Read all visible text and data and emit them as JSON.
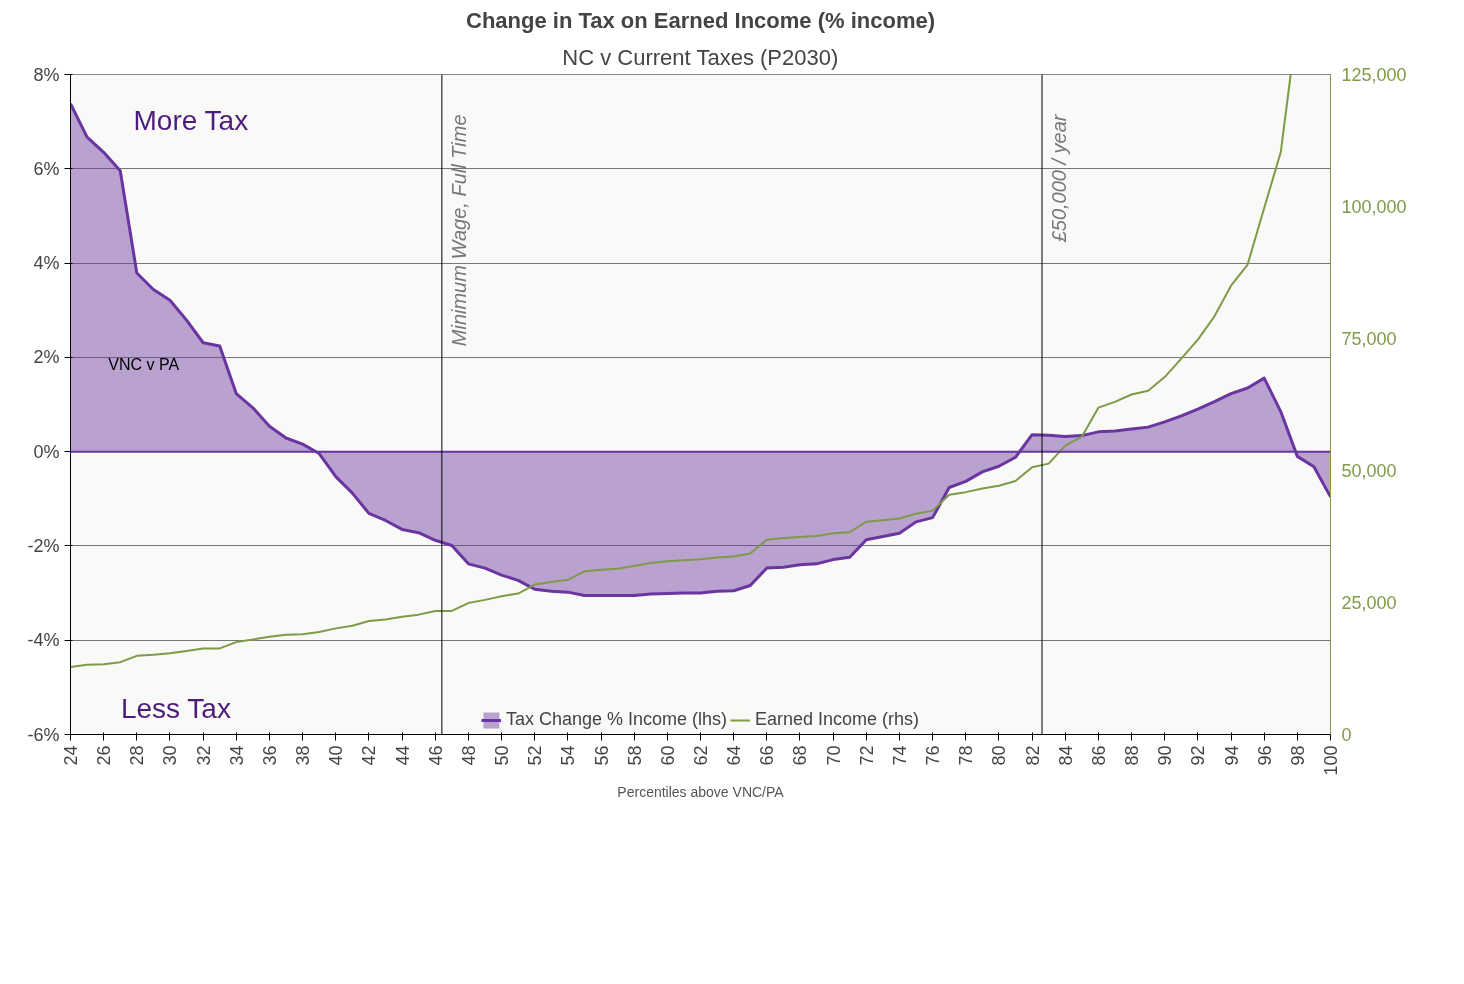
{
  "chart_data": {
    "type": "area",
    "title": "Change in Tax on Earned Income (% income)",
    "subtitle": "NC v Current Taxes (P2030)",
    "xlabel": "Percentiles above VNC/PA",
    "x": [
      24,
      25,
      26,
      27,
      28,
      29,
      30,
      31,
      32,
      33,
      34,
      35,
      36,
      37,
      38,
      39,
      40,
      41,
      42,
      43,
      44,
      45,
      46,
      47,
      48,
      49,
      50,
      51,
      52,
      53,
      54,
      55,
      56,
      57,
      58,
      59,
      60,
      61,
      62,
      63,
      64,
      65,
      66,
      67,
      68,
      69,
      70,
      71,
      72,
      73,
      74,
      75,
      76,
      77,
      78,
      79,
      80,
      81,
      82,
      83,
      84,
      85,
      86,
      87,
      88,
      89,
      90,
      91,
      92,
      93,
      94,
      95,
      96,
      97,
      98,
      99,
      100
    ],
    "series": [
      {
        "name": "Tax Change % Income (lhs)",
        "color": "#6a35a0",
        "values": [
          7.38,
          6.67,
          6.35,
          5.96,
          3.79,
          3.44,
          3.21,
          2.79,
          2.31,
          2.24,
          1.23,
          0.93,
          0.54,
          0.29,
          0.16,
          -0.04,
          -0.53,
          -0.88,
          -1.31,
          -1.46,
          -1.65,
          -1.72,
          -1.88,
          -1.99,
          -2.38,
          -2.47,
          -2.62,
          -2.73,
          -2.92,
          -2.96,
          -2.98,
          -3.05,
          -3.05,
          -3.05,
          -3.05,
          -3.02,
          -3.01,
          -3.0,
          -3.0,
          -2.96,
          -2.95,
          -2.84,
          -2.47,
          -2.45,
          -2.4,
          -2.38,
          -2.29,
          -2.24,
          -1.87,
          -1.8,
          -1.73,
          -1.49,
          -1.4,
          -0.76,
          -0.63,
          -0.43,
          -0.31,
          -0.12,
          0.36,
          0.35,
          0.32,
          0.34,
          0.42,
          0.44,
          0.48,
          0.52,
          0.63,
          0.76,
          0.9,
          1.06,
          1.23,
          1.35,
          1.56,
          0.85,
          -0.1,
          -0.32,
          -0.96
        ]
      },
      {
        "name": "Earned Income (rhs)",
        "type": "line",
        "axis": "y2",
        "color": "#7f9a48",
        "x": [
          24,
          25,
          26,
          27,
          28,
          29,
          30,
          31,
          32,
          33,
          34,
          35,
          36,
          37,
          38,
          39,
          40,
          41,
          42,
          43,
          44,
          45,
          46,
          47,
          48,
          49,
          50,
          51,
          52,
          53,
          54,
          55,
          56,
          57,
          58,
          59,
          60,
          61,
          62,
          63,
          64,
          65,
          66,
          67,
          68,
          69,
          70,
          71,
          72,
          73,
          74,
          75,
          76,
          77,
          78,
          79,
          80,
          81,
          82,
          83,
          84,
          85,
          86,
          87,
          88,
          89,
          90,
          91,
          92,
          93,
          94,
          95,
          96,
          97,
          97.6
        ],
        "values": [
          12800,
          13200,
          13300,
          13700,
          14900,
          15100,
          15400,
          15800,
          16300,
          16300,
          17500,
          18000,
          18500,
          18900,
          19000,
          19400,
          20100,
          20600,
          21500,
          21800,
          22300,
          22700,
          23400,
          23400,
          24900,
          25500,
          26200,
          26700,
          28400,
          28900,
          29300,
          30900,
          31200,
          31400,
          31900,
          32500,
          32800,
          33000,
          33200,
          33500,
          33700,
          34300,
          36900,
          37200,
          37400,
          37600,
          38100,
          38300,
          40300,
          40600,
          40900,
          41800,
          42400,
          45400,
          45900,
          46600,
          47100,
          48000,
          50600,
          51300,
          54700,
          56400,
          61900,
          63000,
          64400,
          65100,
          67700,
          71200,
          74800,
          79200,
          85000,
          89000,
          99700,
          110300,
          125000
        ]
      }
    ],
    "xlim": [
      24,
      100
    ],
    "xticks": [
      24,
      26,
      28,
      30,
      32,
      34,
      36,
      38,
      40,
      42,
      44,
      46,
      48,
      50,
      52,
      54,
      56,
      58,
      60,
      62,
      64,
      66,
      68,
      70,
      72,
      74,
      76,
      78,
      80,
      82,
      84,
      86,
      88,
      90,
      92,
      94,
      96,
      98,
      100
    ],
    "ylim": [
      -6,
      8
    ],
    "yticks": [
      {
        "value": -6,
        "label": "-6%"
      },
      {
        "value": -4,
        "label": "-4%"
      },
      {
        "value": -2,
        "label": "-2%"
      },
      {
        "value": 0,
        "label": "0%"
      },
      {
        "value": 2,
        "label": "2%"
      },
      {
        "value": 4,
        "label": "4%"
      },
      {
        "value": 6,
        "label": "6%"
      },
      {
        "value": 8,
        "label": "8%"
      }
    ],
    "y2lim": [
      0,
      125000
    ],
    "y2ticks": [
      0,
      {
        "value": 25000,
        "label": "25,000"
      },
      {
        "value": 50000,
        "label": "50,000"
      },
      {
        "value": 75000,
        "label": "75,000"
      },
      {
        "value": 100000,
        "label": "100,000"
      },
      {
        "value": 125000,
        "label": "125,000"
      }
    ],
    "ref_lines": [
      {
        "axis": "y",
        "value": 0,
        "color": "#6a35a0"
      },
      {
        "axis": "x",
        "value": 46.4,
        "label": "Minimum Wage, Full Time",
        "color": "#000000"
      },
      {
        "axis": "x",
        "value": 82.6,
        "label": "£50,000 / year",
        "color": "#000000"
      }
    ],
    "annotations": [
      "More Tax",
      "VNC v PA",
      "Less Tax"
    ],
    "grid": "y",
    "legend": "bottom"
  }
}
